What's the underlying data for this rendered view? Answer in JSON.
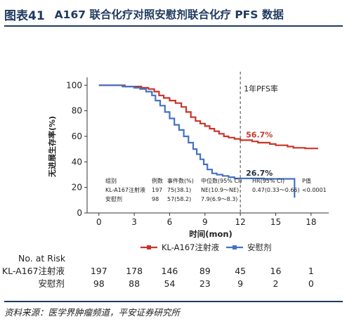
{
  "header": {
    "figure_no": "图表41",
    "title": "A167 联合化疗对照安慰剂联合化疗 PFS 数据"
  },
  "footer": {
    "source": "资料来源：医学界肿瘤频道，平安证券研究所"
  },
  "colors": {
    "kl_a167": "#c8352a",
    "placebo": "#4472c4",
    "axis": "#333333",
    "cutoff": "#444444"
  },
  "chart_data": {
    "type": "line",
    "subtype": "kaplan-meier",
    "xlabel": "时间(mon)",
    "ylabel": "无进展生存率(%)",
    "xlim": [
      -1,
      19.5
    ],
    "ylim": [
      0,
      104
    ],
    "xticks": [
      0,
      3,
      6,
      9,
      12,
      15,
      18
    ],
    "yticks": [
      0,
      20,
      40,
      60,
      80,
      100
    ],
    "cutoff": {
      "x": 12,
      "label": "1年PFS率"
    },
    "series": [
      {
        "name": "KL-A167注射液",
        "color": "#c8352a",
        "label": "56.7%",
        "points": [
          [
            0,
            100
          ],
          [
            1.5,
            100
          ],
          [
            2.2,
            99
          ],
          [
            3.0,
            99
          ],
          [
            3.6,
            98
          ],
          [
            4.2,
            97
          ],
          [
            4.7,
            95
          ],
          [
            5.1,
            92
          ],
          [
            5.5,
            90
          ],
          [
            6.0,
            88
          ],
          [
            6.5,
            86
          ],
          [
            7.0,
            83
          ],
          [
            7.4,
            79
          ],
          [
            7.8,
            75
          ],
          [
            8.2,
            72
          ],
          [
            8.6,
            70
          ],
          [
            9.0,
            68
          ],
          [
            9.4,
            66
          ],
          [
            9.8,
            64
          ],
          [
            10.2,
            62
          ],
          [
            10.6,
            60
          ],
          [
            11.0,
            59
          ],
          [
            11.5,
            58
          ],
          [
            12.0,
            57
          ],
          [
            12.5,
            57
          ],
          [
            13.0,
            56
          ],
          [
            13.5,
            55
          ],
          [
            14.0,
            55
          ],
          [
            14.5,
            54
          ],
          [
            15.0,
            53
          ],
          [
            15.5,
            53
          ],
          [
            16.0,
            52
          ],
          [
            16.5,
            51
          ],
          [
            17.0,
            51
          ],
          [
            17.5,
            50.5
          ],
          [
            18.0,
            50.5
          ],
          [
            18.6,
            50.5
          ]
        ]
      },
      {
        "name": "安慰剂",
        "color": "#4472c4",
        "label": "26.7%",
        "points": [
          [
            0,
            100
          ],
          [
            1.5,
            100
          ],
          [
            2.0,
            99
          ],
          [
            2.5,
            99
          ],
          [
            3.0,
            98
          ],
          [
            3.5,
            97
          ],
          [
            4.0,
            95
          ],
          [
            4.5,
            92
          ],
          [
            4.8,
            88
          ],
          [
            5.2,
            84
          ],
          [
            5.6,
            79
          ],
          [
            6.0,
            74
          ],
          [
            6.4,
            69
          ],
          [
            6.8,
            65
          ],
          [
            7.2,
            60
          ],
          [
            7.6,
            55
          ],
          [
            8.0,
            50
          ],
          [
            8.3,
            46
          ],
          [
            8.6,
            42
          ],
          [
            8.9,
            38
          ],
          [
            9.2,
            34
          ],
          [
            9.6,
            31
          ],
          [
            10.0,
            30
          ],
          [
            10.5,
            29
          ],
          [
            11.0,
            28
          ],
          [
            11.5,
            27
          ],
          [
            12.0,
            27
          ],
          [
            12.5,
            27
          ],
          [
            13.0,
            27
          ],
          [
            14.0,
            26.7
          ],
          [
            15.0,
            26.7
          ],
          [
            16.0,
            26.7
          ],
          [
            16.6,
            26.7
          ],
          [
            16.6,
            12
          ]
        ]
      }
    ],
    "stats_table": {
      "headers": [
        "组别",
        "例数",
        "事件数(%)",
        "中位数(95% CI)",
        "HR(95% CI)",
        "P值"
      ],
      "rows": [
        [
          "KL-A167注射液",
          "197",
          "75(38.1)",
          "NE(10.9～NE)",
          "0.47(0.33～0.66)",
          "<0.0001"
        ],
        [
          "安慰剂",
          "98",
          "57(58.2)",
          "7.9(6.9～8.3)",
          "",
          ""
        ]
      ]
    },
    "legend": {
      "placement": "bottom"
    },
    "risk_table": {
      "title": "No. at Risk",
      "times": [
        0,
        3,
        6,
        9,
        12,
        15,
        18
      ],
      "rows": [
        {
          "name": "KL-A167注射液",
          "values": [
            "197",
            "178",
            "146",
            "89",
            "45",
            "16",
            "1"
          ]
        },
        {
          "name": "安慰剂",
          "values": [
            "98",
            "88",
            "54",
            "23",
            "9",
            "2",
            "0"
          ]
        }
      ]
    }
  }
}
